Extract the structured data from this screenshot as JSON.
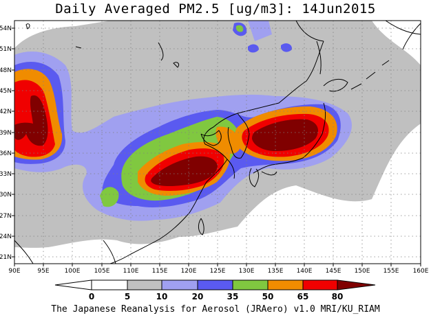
{
  "title": "Daily Averaged PM2.5 [ug/m3]: 14Jun2015",
  "credit": "The Japanese Reanalysis for Aerosol (JRAero) v1.0 MRI/KU_RIAM",
  "map": {
    "lon_range": [
      90,
      160
    ],
    "lat_range": [
      20,
      55
    ],
    "lon_ticks": [
      "90E",
      "95E",
      "100E",
      "105E",
      "110E",
      "115E",
      "120E",
      "125E",
      "130E",
      "135E",
      "140E",
      "145E",
      "150E",
      "155E",
      "160E"
    ],
    "lat_ticks": [
      "21N",
      "24N",
      "27N",
      "30N",
      "33N",
      "36N",
      "39N",
      "42N",
      "45N",
      "48N",
      "51N",
      "54N"
    ],
    "grid": "dotted"
  },
  "colorbar": {
    "labels": [
      "0",
      "5",
      "10",
      "20",
      "35",
      "50",
      "65",
      "80"
    ],
    "colors": {
      "below": "#ffffff",
      "c0_5": "#ffffff",
      "c5_10": "#c0c0c0",
      "c10_20": "#a0a0f0",
      "c20_35": "#5a5af0",
      "c35_50": "#80c840",
      "c50_65": "#f08c00",
      "c65_80": "#f00000",
      "above": "#800000"
    }
  }
}
